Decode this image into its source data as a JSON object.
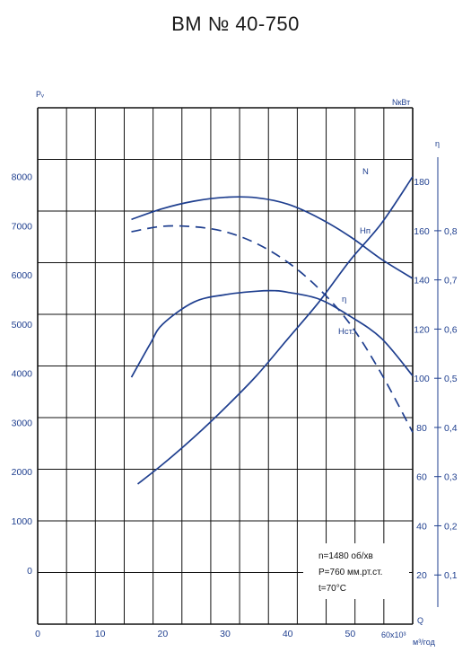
{
  "chart_data": {
    "type": "line",
    "title": "ВМ № 40-750",
    "x_axis": {
      "label": "Q",
      "unit": "м³/год",
      "multiplier": "60х10³",
      "ticks": [
        "0",
        "10",
        "20",
        "30",
        "40",
        "50"
      ],
      "range": [
        0,
        60
      ]
    },
    "y_left": {
      "label": "Pᵥ",
      "ticks": [
        "0",
        "1000",
        "2000",
        "3000",
        "4000",
        "5000",
        "6000",
        "7000",
        "8000"
      ],
      "range": [
        -1100,
        9400
      ]
    },
    "y_power": {
      "label": "NкВт",
      "ticks": [
        "20",
        "40",
        "60",
        "80",
        "100",
        "120",
        "140",
        "160",
        "180"
      ],
      "range": [
        0,
        210
      ]
    },
    "y_eff": {
      "label": "η",
      "ticks": [
        "0,1",
        "0,2",
        "0,3",
        "0,4",
        "0,5",
        "0,6",
        "0,7",
        "0,8"
      ],
      "range": [
        0,
        1.05
      ]
    },
    "series": [
      {
        "name": "Hп",
        "axis": "pressure",
        "style": "solid",
        "x": [
          15,
          20,
          25,
          30,
          35,
          40,
          45,
          50,
          55,
          60
        ],
        "y": [
          7130,
          7350,
          7500,
          7580,
          7570,
          7440,
          7160,
          6780,
          6320,
          5930
        ]
      },
      {
        "name": "Hст.",
        "axis": "pressure",
        "style": "dashed",
        "x": [
          15,
          20,
          25,
          30,
          35,
          40,
          45,
          50,
          55,
          60
        ],
        "y": [
          6880,
          6990,
          6980,
          6880,
          6640,
          6260,
          5720,
          5000,
          3990,
          2800
        ]
      },
      {
        "name": "N",
        "axis": "power",
        "style": "solid",
        "x": [
          16,
          20,
          25,
          30,
          35,
          40,
          45,
          50,
          55,
          60
        ],
        "y": [
          57,
          65,
          76,
          88,
          101,
          116,
          131,
          148,
          163,
          182
        ]
      },
      {
        "name": "η",
        "axis": "efficiency",
        "style": "solid",
        "x": [
          15,
          18,
          20,
          25,
          30,
          35,
          38,
          40,
          45,
          50,
          55,
          60
        ],
        "y": [
          0.502,
          0.57,
          0.61,
          0.655,
          0.67,
          0.677,
          0.678,
          0.675,
          0.661,
          0.626,
          0.581,
          0.505
        ]
      }
    ],
    "curve_labels": {
      "N": "N",
      "Hn": "Hп",
      "eta": "η",
      "Hst": "Hст."
    },
    "notes": [
      "n=1480 об/хв",
      "P=760 мм.рт.ст.",
      "t=70°C"
    ],
    "grid": true
  }
}
